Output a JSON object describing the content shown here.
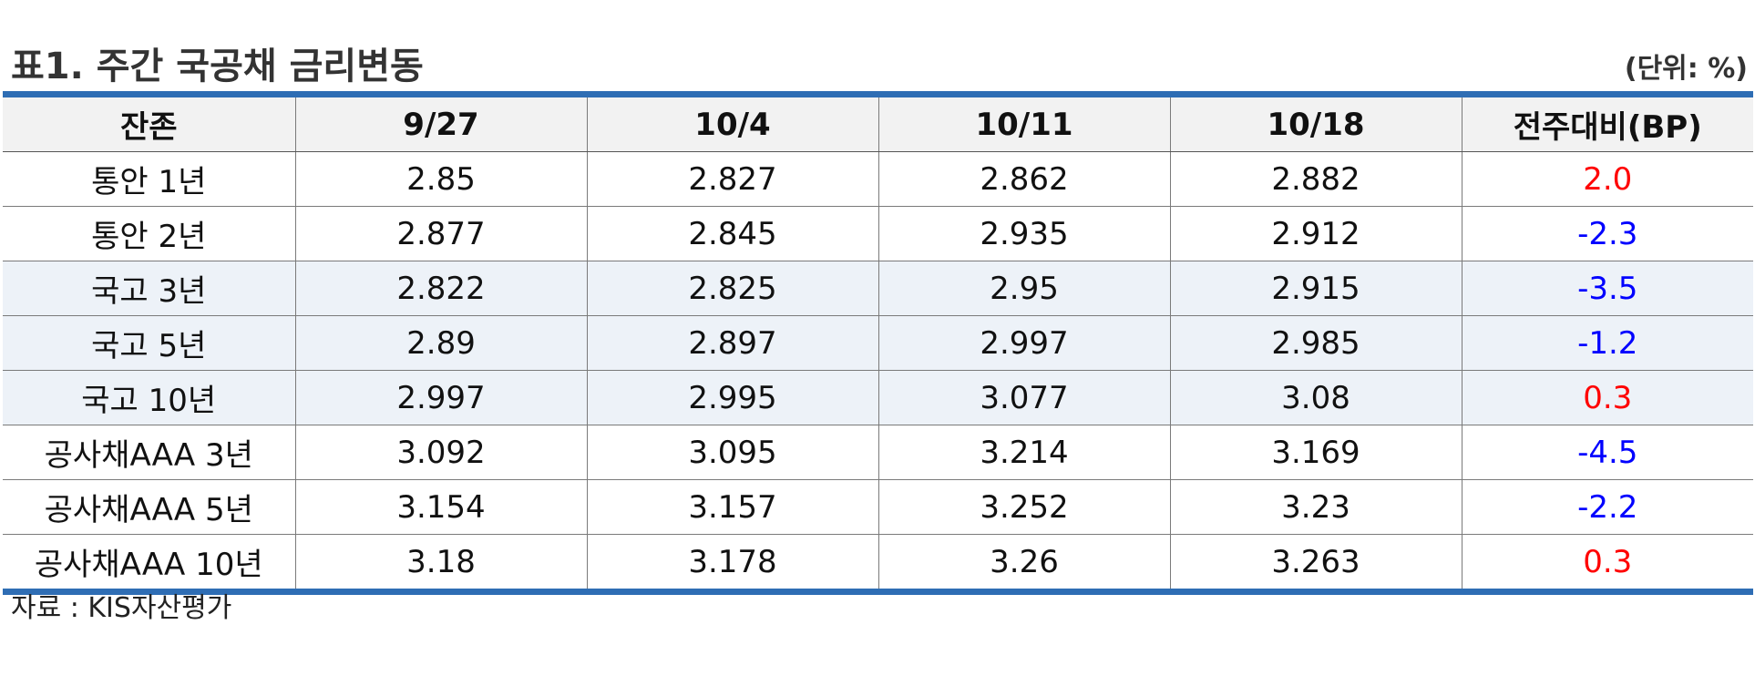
{
  "title": "표1. 주간 국공채 금리변동",
  "unit": "(단위: %)",
  "colors": {
    "rule": "#2e6db4",
    "header_bg": "#f2f2f2",
    "shaded_row": "#edf2f8",
    "positive": "#ff0000",
    "negative": "#0000ff"
  },
  "table": {
    "headers": [
      "잔존",
      "9/27",
      "10/4",
      "10/11",
      "10/18",
      "전주대비(BP)"
    ],
    "rows": [
      {
        "label": "통안 1년",
        "values": [
          "2.85",
          "2.827",
          "2.862",
          "2.882"
        ],
        "change": "2.0",
        "change_sign": "pos",
        "shaded": false
      },
      {
        "label": "통안 2년",
        "values": [
          "2.877",
          "2.845",
          "2.935",
          "2.912"
        ],
        "change": "-2.3",
        "change_sign": "neg",
        "shaded": false
      },
      {
        "label": "국고 3년",
        "values": [
          "2.822",
          "2.825",
          "2.95",
          "2.915"
        ],
        "change": "-3.5",
        "change_sign": "neg",
        "shaded": true
      },
      {
        "label": "국고 5년",
        "values": [
          "2.89",
          "2.897",
          "2.997",
          "2.985"
        ],
        "change": "-1.2",
        "change_sign": "neg",
        "shaded": true
      },
      {
        "label": "국고 10년",
        "values": [
          "2.997",
          "2.995",
          "3.077",
          "3.08"
        ],
        "change": "0.3",
        "change_sign": "pos",
        "shaded": true
      },
      {
        "label": "공사채AAA 3년",
        "values": [
          "3.092",
          "3.095",
          "3.214",
          "3.169"
        ],
        "change": "-4.5",
        "change_sign": "neg",
        "shaded": false
      },
      {
        "label": "공사채AAA 5년",
        "values": [
          "3.154",
          "3.157",
          "3.252",
          "3.23"
        ],
        "change": "-2.2",
        "change_sign": "neg",
        "shaded": false
      },
      {
        "label": "공사채AAA 10년",
        "values": [
          "3.18",
          "3.178",
          "3.26",
          "3.263"
        ],
        "change": "0.3",
        "change_sign": "pos",
        "shaded": false
      }
    ]
  },
  "source": "자료 : KIS자산평가"
}
